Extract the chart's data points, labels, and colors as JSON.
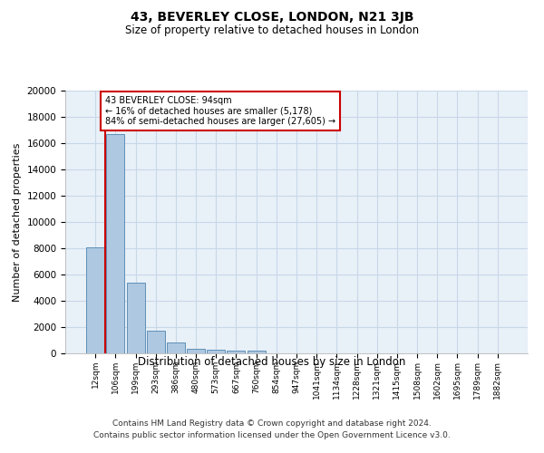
{
  "title": "43, BEVERLEY CLOSE, LONDON, N21 3JB",
  "subtitle": "Size of property relative to detached houses in London",
  "xlabel": "Distribution of detached houses by size in London",
  "ylabel": "Number of detached properties",
  "footer_line1": "Contains HM Land Registry data © Crown copyright and database right 2024.",
  "footer_line2": "Contains public sector information licensed under the Open Government Licence v3.0.",
  "categories": [
    "12sqm",
    "106sqm",
    "199sqm",
    "293sqm",
    "386sqm",
    "480sqm",
    "573sqm",
    "667sqm",
    "760sqm",
    "854sqm",
    "947sqm",
    "1041sqm",
    "1134sqm",
    "1228sqm",
    "1321sqm",
    "1415sqm",
    "1508sqm",
    "1602sqm",
    "1695sqm",
    "1789sqm",
    "1882sqm"
  ],
  "values": [
    8100,
    16700,
    5400,
    1750,
    800,
    340,
    270,
    220,
    190,
    0,
    0,
    0,
    0,
    0,
    0,
    0,
    0,
    0,
    0,
    0,
    0
  ],
  "bar_color": "#adc8e0",
  "bar_edge_color": "#6090b8",
  "grid_color": "#c8d8e8",
  "background_color": "#e8f0f8",
  "property_line_color": "#cc0000",
  "annotation_text": "43 BEVERLEY CLOSE: 94sqm\n← 16% of detached houses are smaller (5,178)\n84% of semi-detached houses are larger (27,605) →",
  "annotation_box_color": "#cc0000",
  "ylim": [
    0,
    20000
  ],
  "yticks": [
    0,
    2000,
    4000,
    6000,
    8000,
    10000,
    12000,
    14000,
    16000,
    18000,
    20000
  ]
}
